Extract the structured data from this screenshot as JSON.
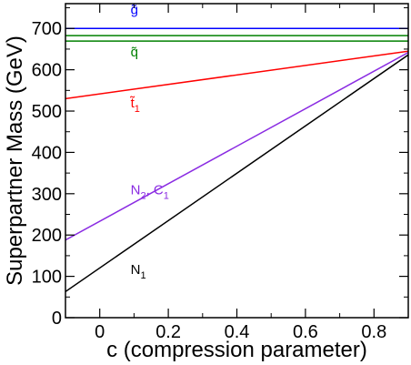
{
  "chart_data": {
    "type": "line",
    "xlabel": "c (compression parameter)",
    "ylabel": "Superpartner Mass  (GeV)",
    "xlim": [
      -0.1,
      0.9
    ],
    "ylim": [
      0,
      760
    ],
    "xticks": [
      0,
      0.2,
      0.4,
      0.6,
      0.8
    ],
    "xtick_labels": [
      "0",
      "0.2",
      "0.4",
      "0.6",
      "0.8"
    ],
    "yticks": [
      0,
      100,
      200,
      300,
      400,
      500,
      600,
      700
    ],
    "ytick_labels": [
      "0",
      "100",
      "200",
      "300",
      "400",
      "500",
      "600",
      "700"
    ],
    "grid": false,
    "series": [
      {
        "name": "g̃",
        "color": "#0000ff",
        "x": [
          -0.1,
          0.9
        ],
        "y": [
          700,
          700
        ],
        "label_at": [
          0.09,
          735
        ]
      },
      {
        "name": "q̃",
        "color": "#008000",
        "x": [
          -0.1,
          0.9
        ],
        "y": [
          676,
          676
        ],
        "label_at": [
          0.09,
          632
        ],
        "double_line_gap": 6
      },
      {
        "name": "t̃",
        "subscript": "1",
        "color": "#ff0000",
        "x": [
          -0.1,
          0.9
        ],
        "y": [
          530,
          645
        ],
        "label_at": [
          0.09,
          509
        ]
      },
      {
        "name": "N",
        "subscript": "2",
        "suffix": ", C",
        "suffix_subscript": "1",
        "color": "#8a2be2",
        "x": [
          -0.1,
          0.9
        ],
        "y": [
          188,
          642
        ],
        "label_at": [
          0.09,
          298
        ]
      },
      {
        "name": "N",
        "subscript": "1",
        "color": "#000000",
        "x": [
          -0.1,
          0.9
        ],
        "y": [
          63,
          636
        ],
        "label_at": [
          0.09,
          106
        ]
      }
    ]
  }
}
